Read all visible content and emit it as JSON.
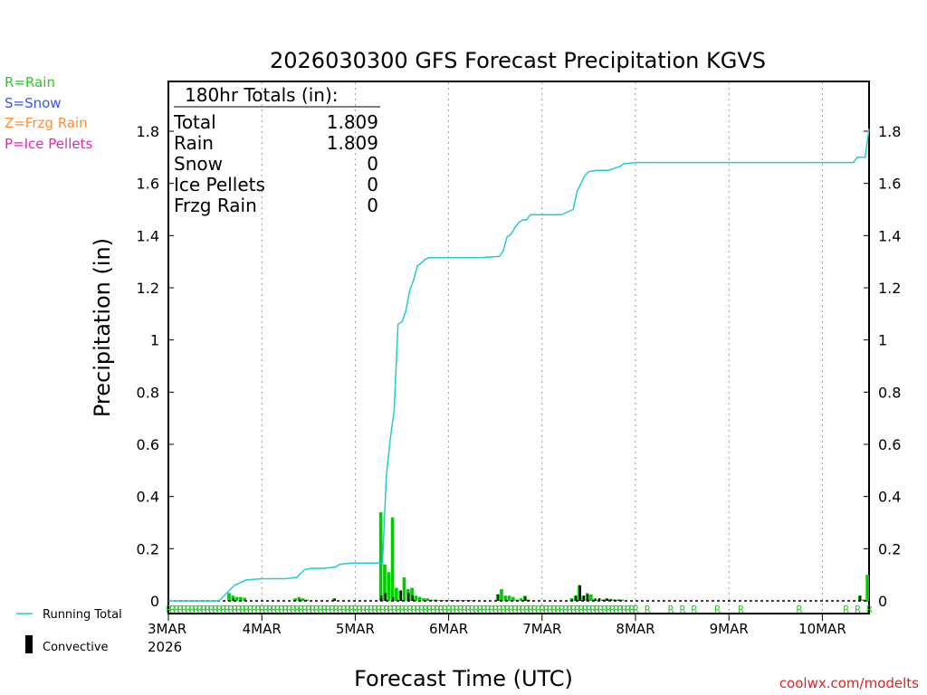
{
  "chart_data": {
    "type": "bar",
    "title": "2026030300 GFS Forecast Precipitation KGVS",
    "xlabel": "Forecast Time (UTC)",
    "ylabel": "Precipitation (in)",
    "ylim": [
      0,
      1.9
    ],
    "y_ticks": [
      "0",
      "0.2",
      "0.4",
      "0.6",
      "0.8",
      "1",
      "1.2",
      "1.4",
      "1.6",
      "1.8"
    ],
    "x_ticks": [
      {
        "hour": 0,
        "label": "3MAR"
      },
      {
        "hour": 24,
        "label": "4MAR"
      },
      {
        "hour": 48,
        "label": "5MAR"
      },
      {
        "hour": 72,
        "label": "6MAR"
      },
      {
        "hour": 96,
        "label": "7MAR"
      },
      {
        "hour": 120,
        "label": "8MAR"
      },
      {
        "hour": 144,
        "label": "9MAR"
      },
      {
        "hour": 168,
        "label": "10MAR"
      }
    ],
    "x_year": "2026",
    "x_range_hours": [
      0,
      180
    ],
    "legend_types": [
      {
        "label": "R=Rain",
        "color": "#22cc22"
      },
      {
        "label": "S=Snow",
        "color": "#3355ff"
      },
      {
        "label": "Z=Frzg Rain",
        "color": "#ff8c33"
      },
      {
        "label": "P=Ice Pellets",
        "color": "#ee22aa"
      }
    ],
    "legend_lines": {
      "running_total": "Running Total",
      "convective": "Convective"
    },
    "totals": {
      "header": "180hr Totals (in):",
      "rows": [
        {
          "label": "Total",
          "value": "1.809"
        },
        {
          "label": "Rain",
          "value": "1.809"
        },
        {
          "label": "Snow",
          "value": "0"
        },
        {
          "label": "Ice Pellets",
          "value": "0"
        },
        {
          "label": "Frzg Rain",
          "value": "0"
        }
      ]
    },
    "credit": "coolwx.com/modelts",
    "series": [
      {
        "name": "Precipitation (rain)",
        "type": "bar",
        "color": "#00cc00",
        "x": [
          16,
          17,
          18,
          19,
          20,
          33,
          34,
          35,
          36,
          43,
          55,
          56,
          57,
          58,
          59,
          60,
          61,
          62,
          63,
          64,
          65,
          66,
          67,
          68,
          69,
          70,
          71,
          72,
          73,
          74,
          75,
          76,
          77,
          78,
          79,
          85,
          86,
          87,
          88,
          89,
          90,
          91,
          92,
          93,
          104,
          105,
          106,
          107,
          108,
          109,
          110,
          111,
          112,
          113,
          114,
          115,
          116,
          117,
          178,
          179,
          180
        ],
        "values": [
          0.03,
          0.02,
          0.015,
          0.015,
          0.012,
          0.01,
          0.015,
          0.01,
          0.005,
          0.01,
          0.34,
          0.14,
          0.11,
          0.32,
          0.05,
          0.04,
          0.09,
          0.045,
          0.05,
          0.02,
          0.015,
          0.01,
          0.01,
          0.005,
          0.005,
          0.003,
          0.003,
          0.003,
          0.003,
          0.003,
          0.003,
          0.003,
          0.003,
          0.003,
          0.003,
          0.025,
          0.045,
          0.02,
          0.02,
          0.015,
          0.005,
          0.01,
          0.02,
          0.005,
          0.01,
          0.02,
          0.06,
          0.02,
          0.03,
          0.025,
          0.01,
          0.005,
          0.005,
          0.01,
          0.008,
          0.005,
          0.005,
          0.005,
          0.02,
          0.005,
          0.1
        ]
      },
      {
        "name": "Convective",
        "type": "bar",
        "color": "#000000",
        "x": [
          17,
          34,
          43,
          55,
          56,
          58,
          60,
          62,
          63,
          85,
          92,
          104,
          105,
          106,
          107,
          108,
          110,
          111,
          112,
          113,
          114,
          115,
          116,
          178
        ],
        "values": [
          0.01,
          0.005,
          0.008,
          0.02,
          0.03,
          0.015,
          0.04,
          0.03,
          0.02,
          0.025,
          0.015,
          0.005,
          0.02,
          0.06,
          0.02,
          0.025,
          0.005,
          0.01,
          0.005,
          0.008,
          0.005,
          0.005,
          0.005,
          0.02
        ]
      },
      {
        "name": "Running Total",
        "type": "line",
        "color": "#22cccc",
        "x": [
          0,
          13,
          15,
          17,
          20,
          24,
          30,
          33,
          35,
          37,
          40,
          43,
          44,
          47,
          50,
          55,
          56,
          57,
          58,
          59,
          60,
          61,
          62,
          63,
          64,
          65,
          66,
          67,
          68,
          69,
          71,
          75,
          80,
          85,
          86,
          87,
          88,
          89,
          90,
          91,
          92,
          93,
          96,
          101,
          104,
          105,
          106,
          107,
          108,
          110,
          113,
          116,
          117,
          120,
          125,
          130,
          140,
          150,
          160,
          170,
          176,
          177,
          179,
          180
        ],
        "values": [
          0,
          0,
          0.03,
          0.06,
          0.08,
          0.085,
          0.085,
          0.09,
          0.12,
          0.125,
          0.125,
          0.13,
          0.14,
          0.145,
          0.145,
          0.145,
          0.48,
          0.62,
          0.73,
          1.06,
          1.07,
          1.11,
          1.19,
          1.23,
          1.285,
          1.295,
          1.31,
          1.315,
          1.315,
          1.315,
          1.315,
          1.315,
          1.315,
          1.32,
          1.34,
          1.395,
          1.405,
          1.43,
          1.45,
          1.46,
          1.46,
          1.48,
          1.48,
          1.48,
          1.5,
          1.57,
          1.6,
          1.63,
          1.645,
          1.65,
          1.65,
          1.665,
          1.675,
          1.68,
          1.68,
          1.68,
          1.68,
          1.68,
          1.68,
          1.68,
          1.68,
          1.7,
          1.7,
          1.809
        ]
      }
    ],
    "ptype_labels": {
      "letter": "R",
      "hours": [
        0,
        1,
        2,
        3,
        4,
        5,
        6,
        7,
        8,
        9,
        10,
        11,
        12,
        13,
        14,
        15,
        16,
        17,
        18,
        19,
        20,
        21,
        22,
        23,
        24,
        25,
        26,
        27,
        28,
        29,
        30,
        31,
        32,
        33,
        34,
        35,
        36,
        37,
        38,
        39,
        40,
        41,
        42,
        43,
        44,
        45,
        46,
        47,
        48,
        49,
        50,
        51,
        52,
        53,
        54,
        55,
        56,
        57,
        58,
        59,
        60,
        61,
        62,
        63,
        64,
        65,
        66,
        67,
        68,
        69,
        70,
        71,
        72,
        73,
        74,
        75,
        76,
        77,
        78,
        79,
        80,
        81,
        82,
        83,
        84,
        85,
        86,
        87,
        88,
        89,
        90,
        91,
        92,
        93,
        94,
        95,
        96,
        97,
        98,
        99,
        100,
        101,
        102,
        103,
        104,
        105,
        106,
        107,
        108,
        109,
        110,
        111,
        112,
        113,
        114,
        115,
        116,
        117,
        118,
        119,
        120,
        123,
        129,
        132,
        135,
        141,
        147,
        162,
        174,
        177,
        180
      ]
    }
  }
}
